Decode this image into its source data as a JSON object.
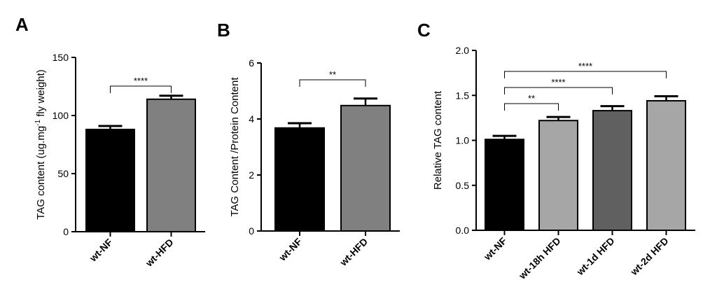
{
  "chart_data": [
    {
      "panel": "A",
      "type": "bar",
      "categories": [
        "wt-NF",
        "wt-HFD"
      ],
      "values": [
        88,
        114
      ],
      "errors": [
        3,
        3
      ],
      "bar_colors": [
        "#000000",
        "#808080"
      ],
      "ylabel": "TAG content (ug.mg-1 fly weight)",
      "ylabel_main": "TAG content (ug.mg",
      "ylabel_sup": "-1",
      "ylabel_tail": " fly weight)",
      "ylim": [
        0,
        150
      ],
      "yticks": [
        "0",
        "50",
        "100",
        "150"
      ],
      "comparisons": [
        {
          "from": 0,
          "to": 1,
          "label": "****"
        }
      ]
    },
    {
      "panel": "B",
      "type": "bar",
      "categories": [
        "wt-NF",
        "wt-HFD"
      ],
      "values": [
        3.68,
        4.48
      ],
      "errors": [
        0.17,
        0.25
      ],
      "bar_colors": [
        "#000000",
        "#808080"
      ],
      "ylabel": "TAG Content /Protein Content",
      "ylim": [
        0,
        6
      ],
      "yticks": [
        "0",
        "2",
        "4",
        "6"
      ],
      "comparisons": [
        {
          "from": 0,
          "to": 1,
          "label": "**"
        }
      ]
    },
    {
      "panel": "C",
      "type": "bar",
      "categories": [
        "wt-NF",
        "wt-18h HFD",
        "wt-1d HFD",
        "wt-2d HFD"
      ],
      "values": [
        1.01,
        1.22,
        1.33,
        1.44
      ],
      "errors": [
        0.04,
        0.04,
        0.05,
        0.05
      ],
      "bar_colors": [
        "#000000",
        "#a6a6a6",
        "#606060",
        "#a6a6a6"
      ],
      "ylabel": "Relative TAG content",
      "ylim": [
        0,
        2.0
      ],
      "yticks": [
        "0.0",
        "0.5",
        "1.0",
        "1.5",
        "2.0"
      ],
      "comparisons": [
        {
          "from": 0,
          "to": 1,
          "label": "**"
        },
        {
          "from": 0,
          "to": 2,
          "label": "****"
        },
        {
          "from": 0,
          "to": 3,
          "label": "****"
        }
      ]
    }
  ]
}
